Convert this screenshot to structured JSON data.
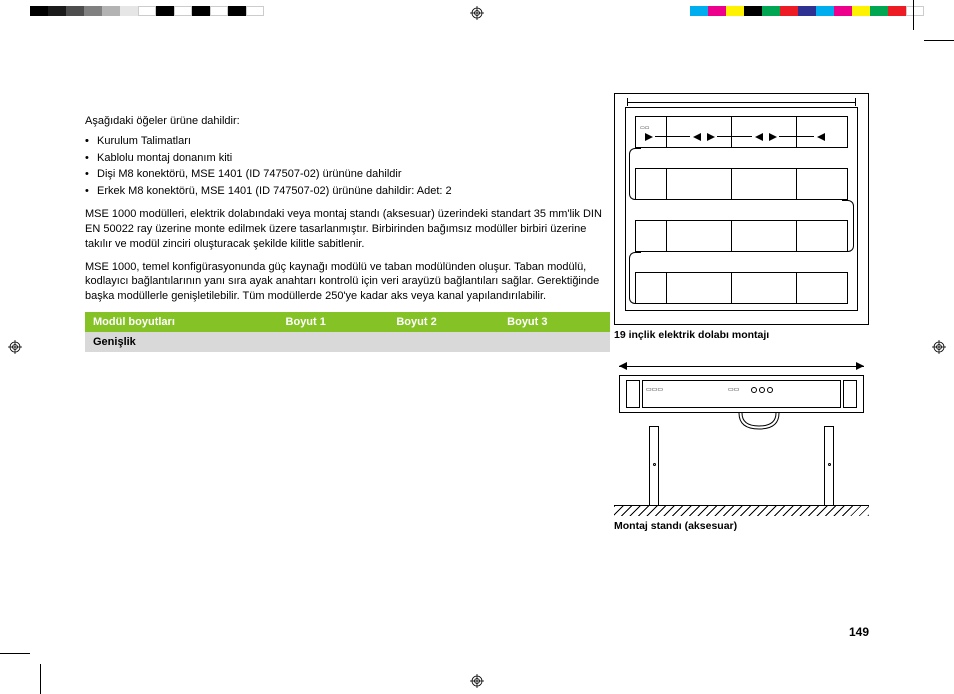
{
  "colors": {
    "header_bg": "#85c226",
    "row_bg": "#d9d9d9",
    "text": "#000000",
    "header_text": "#ffffff"
  },
  "print_bars": {
    "left": [
      "#000000",
      "#1a1a1a",
      "#4d4d4d",
      "#808080",
      "#b3b3b3",
      "#e6e6e6",
      "#ffffff",
      "#000000",
      "#ffffff",
      "#000000",
      "#ffffff",
      "#000000",
      "#ffffff"
    ],
    "right": [
      "#00aeef",
      "#ec008c",
      "#fff200",
      "#000000",
      "#00a651",
      "#ed1c24",
      "#2e3192",
      "#00aeef",
      "#ec008c",
      "#fff200",
      "#00a651",
      "#ed1c24",
      "#ffffff"
    ]
  },
  "intro": "Aşağıdaki öğeler ürüne dahildir:",
  "bullets": [
    "",
    "Kurulum Talimatları",
    "Kablolu montaj donanım kiti",
    "Dişi M8 konektörü, MSE 1401 (ID 747507-02) ürününe dahildir",
    "Erkek M8 konektörü, MSE 1401 (ID 747507-02) ürününe dahildir: Adet: 2"
  ],
  "para1": "MSE 1000 modülleri, elektrik dolabındaki veya montaj standı (aksesuar) üzerindeki standart 35 mm'lik DIN EN 50022 ray üzerine monte edilmek üzere tasarlanmıştır. Birbirinden bağımsız modüller birbiri üzerine takılır ve modül zinciri oluşturacak şekilde kilitle sabitlenir.",
  "para2": "MSE 1000, temel konfigürasyonunda güç kaynağı modülü ve taban modülünden oluşur. Taban modülü, kodlayıcı bağlantılarının yanı sıra ayak anahtarı kontrolü için veri arayüzü bağlantıları sağlar. Gerektiğinde başka modüllerle genişletilebilir. Tüm modüllerde 250'ye kadar aks veya kanal yapılandırılabilir.",
  "table": {
    "headers": [
      "Modül boyutları",
      "Boyut 1",
      "Boyut 2",
      "Boyut 3"
    ],
    "rows": [
      [
        "Genişlik",
        "",
        "",
        ""
      ]
    ]
  },
  "figures": {
    "cabinet_caption": "19 inçlik elektrik dolabı montajı",
    "stand_caption": "Montaj standı (aksesuar)"
  },
  "page_number": "149"
}
